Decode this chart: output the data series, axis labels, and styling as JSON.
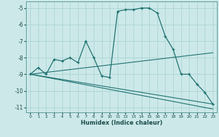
{
  "xlabel": "Humidex (Indice chaleur)",
  "bg_color": "#cce8e8",
  "grid_color": "#aad4d4",
  "line_color": "#1a6e6e",
  "xlim": [
    -0.5,
    23.5
  ],
  "ylim": [
    -11.3,
    -4.6
  ],
  "yticks": [
    -11,
    -10,
    -9,
    -8,
    -7,
    -6,
    -5
  ],
  "xticks": [
    0,
    1,
    2,
    3,
    4,
    5,
    6,
    7,
    8,
    9,
    10,
    11,
    12,
    13,
    14,
    15,
    16,
    17,
    18,
    19,
    20,
    21,
    22,
    23
  ],
  "series1_x": [
    0,
    1,
    2,
    3,
    4,
    5,
    6,
    7,
    8,
    9,
    10,
    11,
    12,
    13,
    14,
    15,
    16,
    17,
    18,
    19,
    20,
    21,
    22,
    23
  ],
  "series1_y": [
    -9.0,
    -8.6,
    -9.0,
    -8.1,
    -8.2,
    -8.0,
    -8.3,
    -7.0,
    -8.0,
    -9.1,
    -9.2,
    -5.2,
    -5.1,
    -5.1,
    -5.0,
    -5.0,
    -5.3,
    -6.7,
    -7.5,
    -9.0,
    -9.0,
    -9.6,
    -10.1,
    -10.8
  ],
  "series2_x": [
    0,
    23
  ],
  "series2_y": [
    -9.0,
    -7.7
  ],
  "series3_x": [
    0,
    23
  ],
  "series3_y": [
    -9.0,
    -10.8
  ],
  "series4_x": [
    0,
    23
  ],
  "series4_y": [
    -9.0,
    -11.1
  ]
}
